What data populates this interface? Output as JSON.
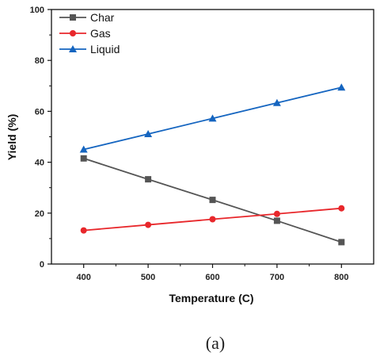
{
  "caption": "(a)",
  "chart_data": {
    "type": "line",
    "title": "",
    "xlabel": "Temperature (C)",
    "ylabel": "Yield (%)",
    "x": [
      400,
      500,
      600,
      700,
      800
    ],
    "xticks": [
      "400",
      "500",
      "600",
      "700",
      "800"
    ],
    "yticks": [
      "0",
      "20",
      "40",
      "60",
      "80",
      "100"
    ],
    "xlim": [
      350,
      850
    ],
    "ylim": [
      0,
      100
    ],
    "grid": false,
    "legend_position": "top-left",
    "series": [
      {
        "name": "Char",
        "values": [
          41.5,
          33.3,
          25.2,
          17.0,
          8.6
        ],
        "color": "#555555",
        "marker": "square"
      },
      {
        "name": "Gas",
        "values": [
          13.2,
          15.4,
          17.6,
          19.7,
          21.9
        ],
        "color": "#e8272b",
        "marker": "circle"
      },
      {
        "name": "Liquid",
        "values": [
          45.0,
          51.1,
          57.2,
          63.3,
          69.4
        ],
        "color": "#1565c0",
        "marker": "triangle"
      }
    ]
  }
}
